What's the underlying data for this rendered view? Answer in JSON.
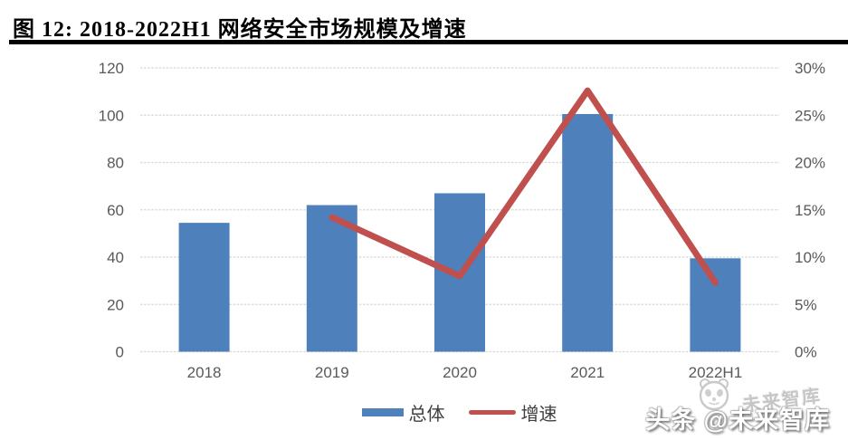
{
  "figure": {
    "title": "图 12:  2018-2022H1 网络安全市场规模及增速"
  },
  "chart_data": {
    "type": "bar",
    "subtype": "bar+line combo, dual axis",
    "title": "2018-2022H1 网络安全市场规模及增速",
    "categories": [
      "2018",
      "2019",
      "2020",
      "2021",
      "2022H1"
    ],
    "series": [
      {
        "name": "总体",
        "type": "bar",
        "axis": "left",
        "color": "#4E80BC",
        "values": [
          54.5,
          62,
          67,
          100.5,
          39.5
        ]
      },
      {
        "name": "增速",
        "type": "line",
        "axis": "right",
        "color": "#C0504D",
        "values": [
          null,
          14.2,
          8.0,
          27.6,
          7.3
        ]
      }
    ],
    "left_axis": {
      "min": 0,
      "max": 120,
      "step": 20,
      "ticks": [
        "120",
        "100",
        "80",
        "60",
        "40",
        "20",
        "0"
      ]
    },
    "right_axis": {
      "min": 0,
      "max": 30,
      "step": 5,
      "ticks": [
        "30%",
        "25%",
        "20%",
        "15%",
        "10%",
        "5%",
        "0%"
      ]
    },
    "grid": true,
    "legend_position": "bottom"
  },
  "legend": {
    "items": [
      {
        "label": "总体",
        "swatch": "bar",
        "color": "#4E80BC"
      },
      {
        "label": "增速",
        "swatch": "line",
        "color": "#C0504D"
      }
    ]
  },
  "watermark": {
    "small_text": "未来智库",
    "main_text": "头条 @未来智库",
    "logo": "toutiao-panda-logo"
  },
  "colors": {
    "bar_blue": "#4E80BC",
    "line_red": "#C0504D",
    "gridline": "#D8D8D8",
    "axis_text": "#595959",
    "title_text": "#000000",
    "watermark_gray": "#c6c6c6"
  }
}
